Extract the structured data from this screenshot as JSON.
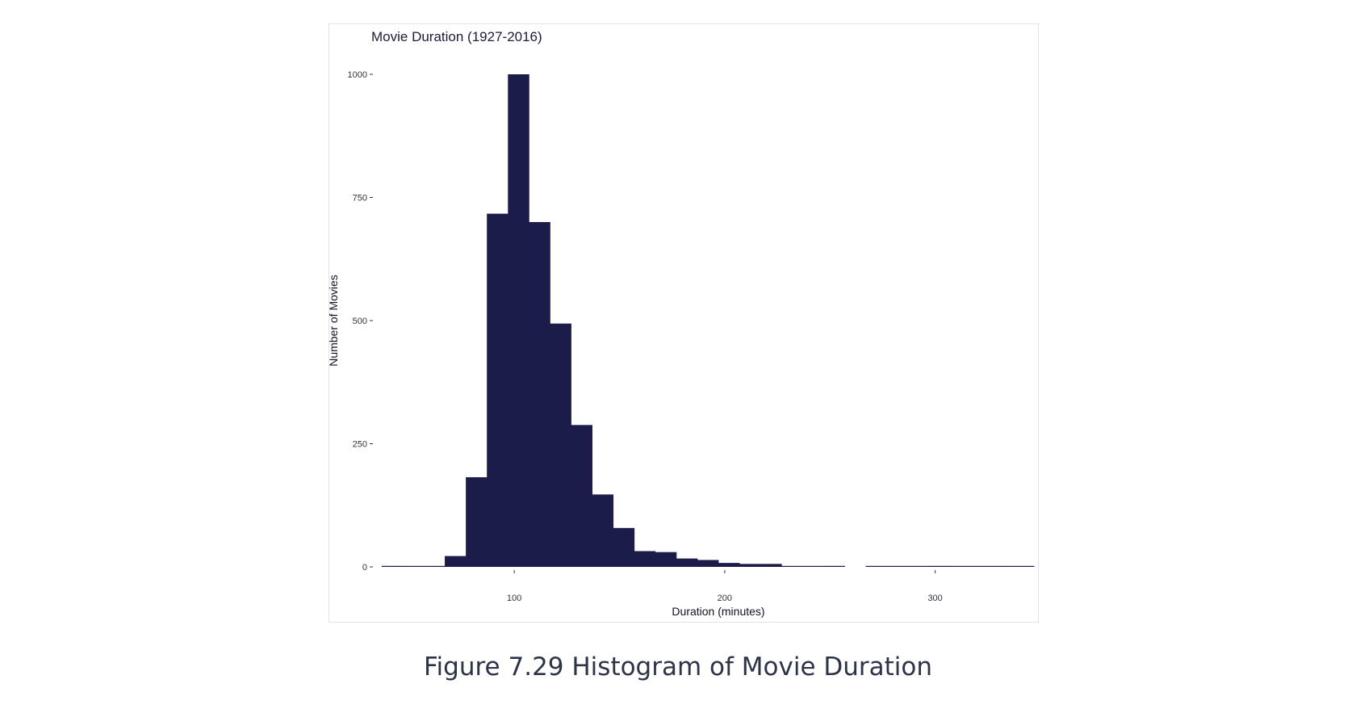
{
  "caption": "Figure 7.29 Histogram of Movie Duration",
  "colors": {
    "bar": "#1c1c4a",
    "frame": "#e3e3e6",
    "caption": "#2e3447"
  },
  "chart_data": {
    "type": "bar",
    "title": "Movie Duration (1927-2016)",
    "xlabel": "Duration (minutes)",
    "ylabel": "Number of Movies",
    "xlim": [
      34,
      350
    ],
    "ylim": [
      0,
      1010
    ],
    "xticks": [
      100,
      200,
      300
    ],
    "yticks": [
      0,
      250,
      500,
      750,
      1000
    ],
    "grid": false,
    "legend": "none",
    "bin_width": 10,
    "bins": [
      {
        "x0": 37,
        "x1": 47,
        "value": 2
      },
      {
        "x0": 47,
        "x1": 57,
        "value": 1
      },
      {
        "x0": 57,
        "x1": 67,
        "value": 1
      },
      {
        "x0": 67,
        "x1": 77,
        "value": 22
      },
      {
        "x0": 77,
        "x1": 87,
        "value": 182
      },
      {
        "x0": 87,
        "x1": 97,
        "value": 717
      },
      {
        "x0": 97,
        "x1": 107,
        "value": 1000
      },
      {
        "x0": 107,
        "x1": 117,
        "value": 700
      },
      {
        "x0": 117,
        "x1": 127,
        "value": 494
      },
      {
        "x0": 127,
        "x1": 137,
        "value": 288
      },
      {
        "x0": 137,
        "x1": 147,
        "value": 147
      },
      {
        "x0": 147,
        "x1": 157,
        "value": 79
      },
      {
        "x0": 157,
        "x1": 167,
        "value": 32
      },
      {
        "x0": 167,
        "x1": 177,
        "value": 30
      },
      {
        "x0": 177,
        "x1": 187,
        "value": 17
      },
      {
        "x0": 187,
        "x1": 197,
        "value": 14
      },
      {
        "x0": 197,
        "x1": 207,
        "value": 8
      },
      {
        "x0": 207,
        "x1": 217,
        "value": 6
      },
      {
        "x0": 217,
        "x1": 227,
        "value": 6
      },
      {
        "x0": 227,
        "x1": 237,
        "value": 1
      },
      {
        "x0": 237,
        "x1": 247,
        "value": 1
      },
      {
        "x0": 247,
        "x1": 257,
        "value": 2
      },
      {
        "x0": 267,
        "x1": 277,
        "value": 1
      },
      {
        "x0": 277,
        "x1": 287,
        "value": 1
      },
      {
        "x0": 287,
        "x1": 297,
        "value": 1
      },
      {
        "x0": 297,
        "x1": 307,
        "value": 2
      },
      {
        "x0": 307,
        "x1": 317,
        "value": 1
      },
      {
        "x0": 317,
        "x1": 327,
        "value": 1
      },
      {
        "x0": 327,
        "x1": 337,
        "value": 1
      },
      {
        "x0": 337,
        "x1": 347,
        "value": 1
      }
    ]
  }
}
